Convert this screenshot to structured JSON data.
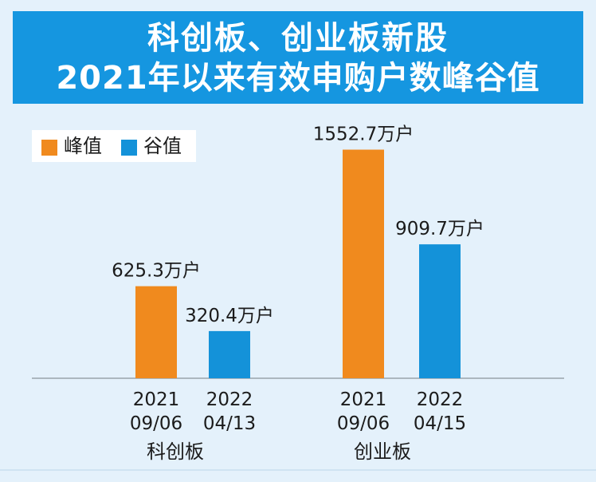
{
  "header": {
    "title_line1": "科创板、创业板新股",
    "title_line2": "2021年以来有效申购户数峰谷值"
  },
  "colors": {
    "peak": "#f08a1e",
    "trough": "#1492d9",
    "header_bg": "#1596e0"
  },
  "chart_data": {
    "type": "bar",
    "legend": [
      {
        "name": "峰值",
        "color": "#f08a1e"
      },
      {
        "name": "谷值",
        "color": "#1492d9"
      }
    ],
    "legend_position": "top-left",
    "unit": "万户",
    "groups": [
      {
        "name": "科创板",
        "bars": [
          {
            "series": "峰值",
            "date_year": "2021",
            "date_md": "09/06",
            "value": 625.3,
            "label": "625.3万户"
          },
          {
            "series": "谷值",
            "date_year": "2022",
            "date_md": "04/13",
            "value": 320.4,
            "label": "320.4万户"
          }
        ]
      },
      {
        "name": "创业板",
        "bars": [
          {
            "series": "峰值",
            "date_year": "2021",
            "date_md": "09/06",
            "value": 1552.7,
            "label": "1552.7万户"
          },
          {
            "series": "谷值",
            "date_year": "2022",
            "date_md": "04/15",
            "value": 909.7,
            "label": "909.7万户"
          }
        ]
      }
    ],
    "grid": false
  }
}
